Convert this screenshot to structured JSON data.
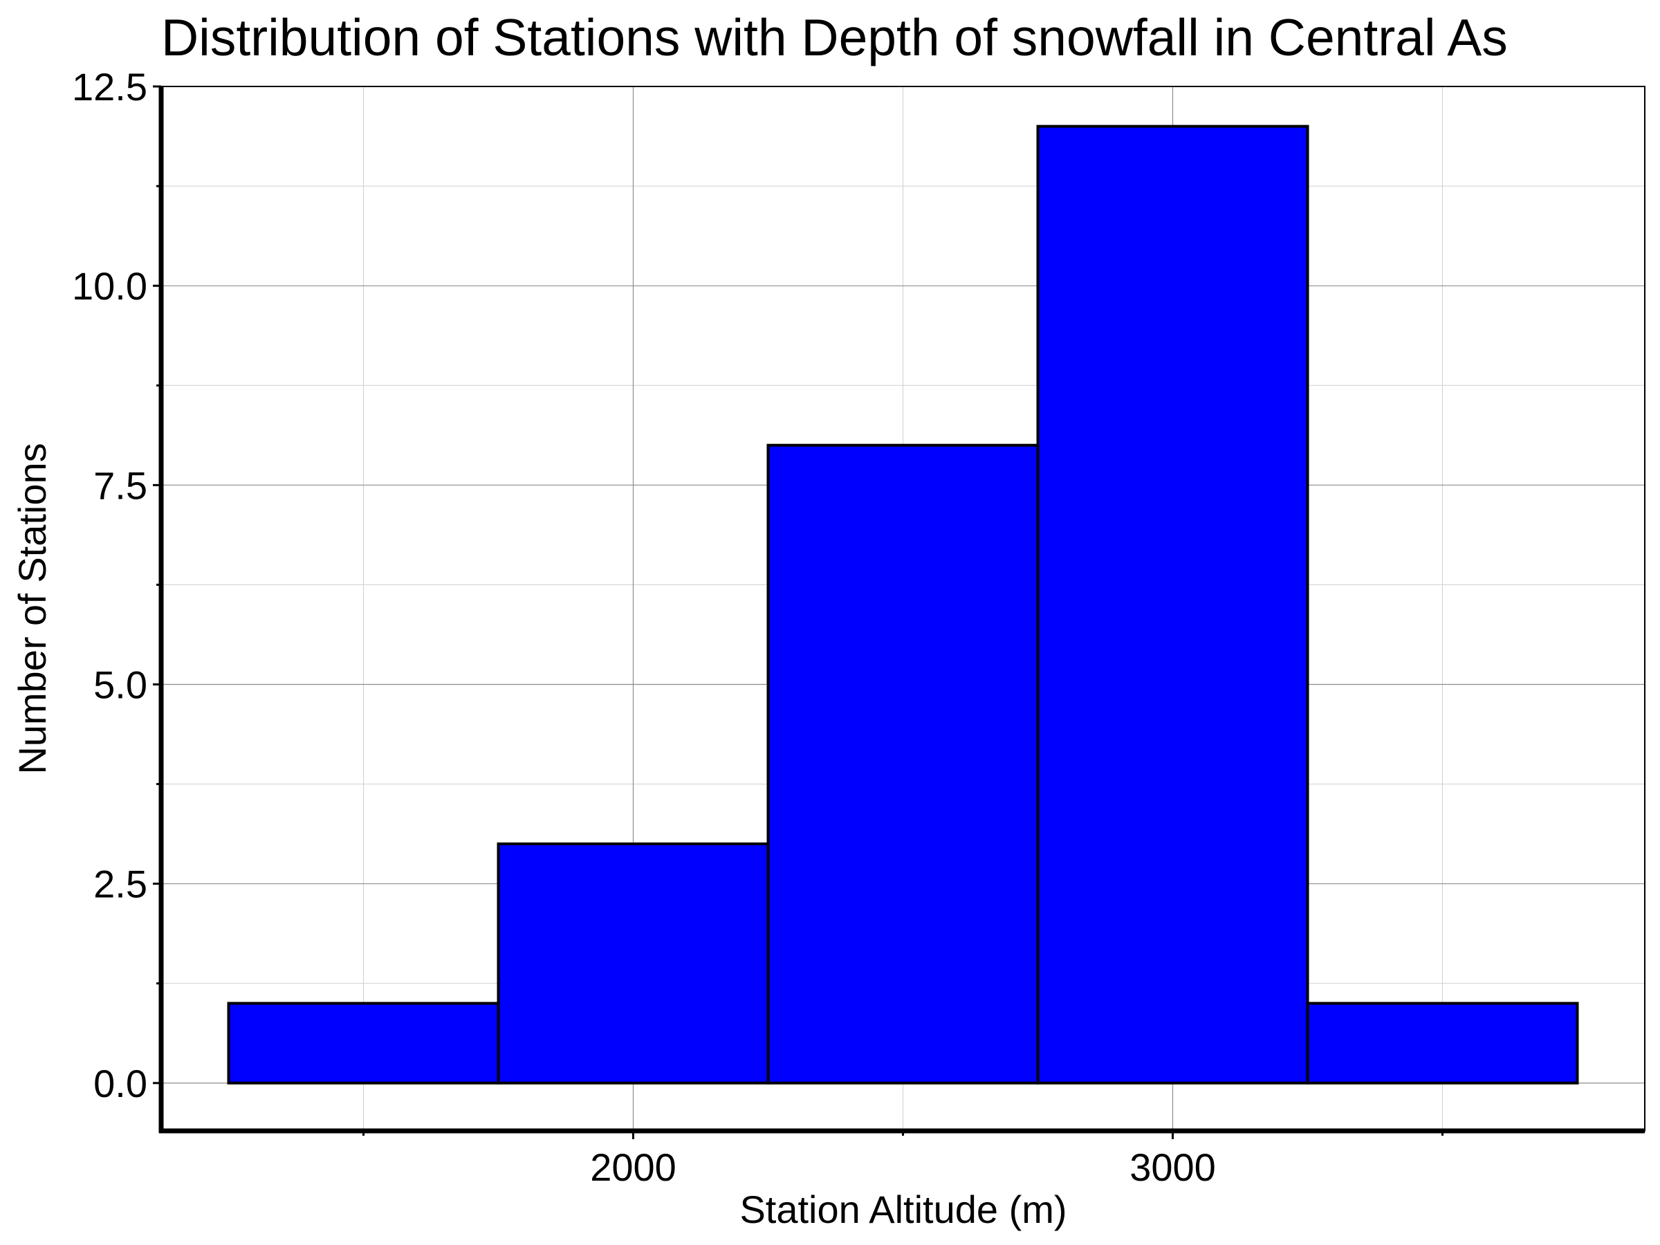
{
  "chart_data": {
    "type": "bar",
    "title": "Distribution of Stations with Depth of snowfall in Central As",
    "xlabel": "Station Altitude (m)",
    "ylabel": "Number of Stations",
    "bins": [
      {
        "start": 1250,
        "end": 1750,
        "value": 1
      },
      {
        "start": 1750,
        "end": 2250,
        "value": 3
      },
      {
        "start": 2250,
        "end": 2750,
        "value": 8
      },
      {
        "start": 2750,
        "end": 3250,
        "value": 12
      },
      {
        "start": 3250,
        "end": 3750,
        "value": 1
      }
    ],
    "xlim": [
      1125,
      3875
    ],
    "ylim": [
      -0.6,
      12.5
    ],
    "x_ticks": [
      2000,
      3000
    ],
    "x_tick_labels": [
      "2000",
      "3000"
    ],
    "x_minor_ticks": [
      1500,
      2500,
      3500
    ],
    "y_ticks": [
      0,
      2.5,
      5,
      7.5,
      10,
      12.5
    ],
    "y_tick_labels": [
      "0.0",
      "2.5",
      "5.0",
      "7.5",
      "10.0",
      "12.5"
    ],
    "y_minor_ticks": [
      1.25,
      3.75,
      6.25,
      8.75,
      11.25
    ],
    "grid": true,
    "bar_color": "#0000ff",
    "edge_color": "#000000"
  }
}
